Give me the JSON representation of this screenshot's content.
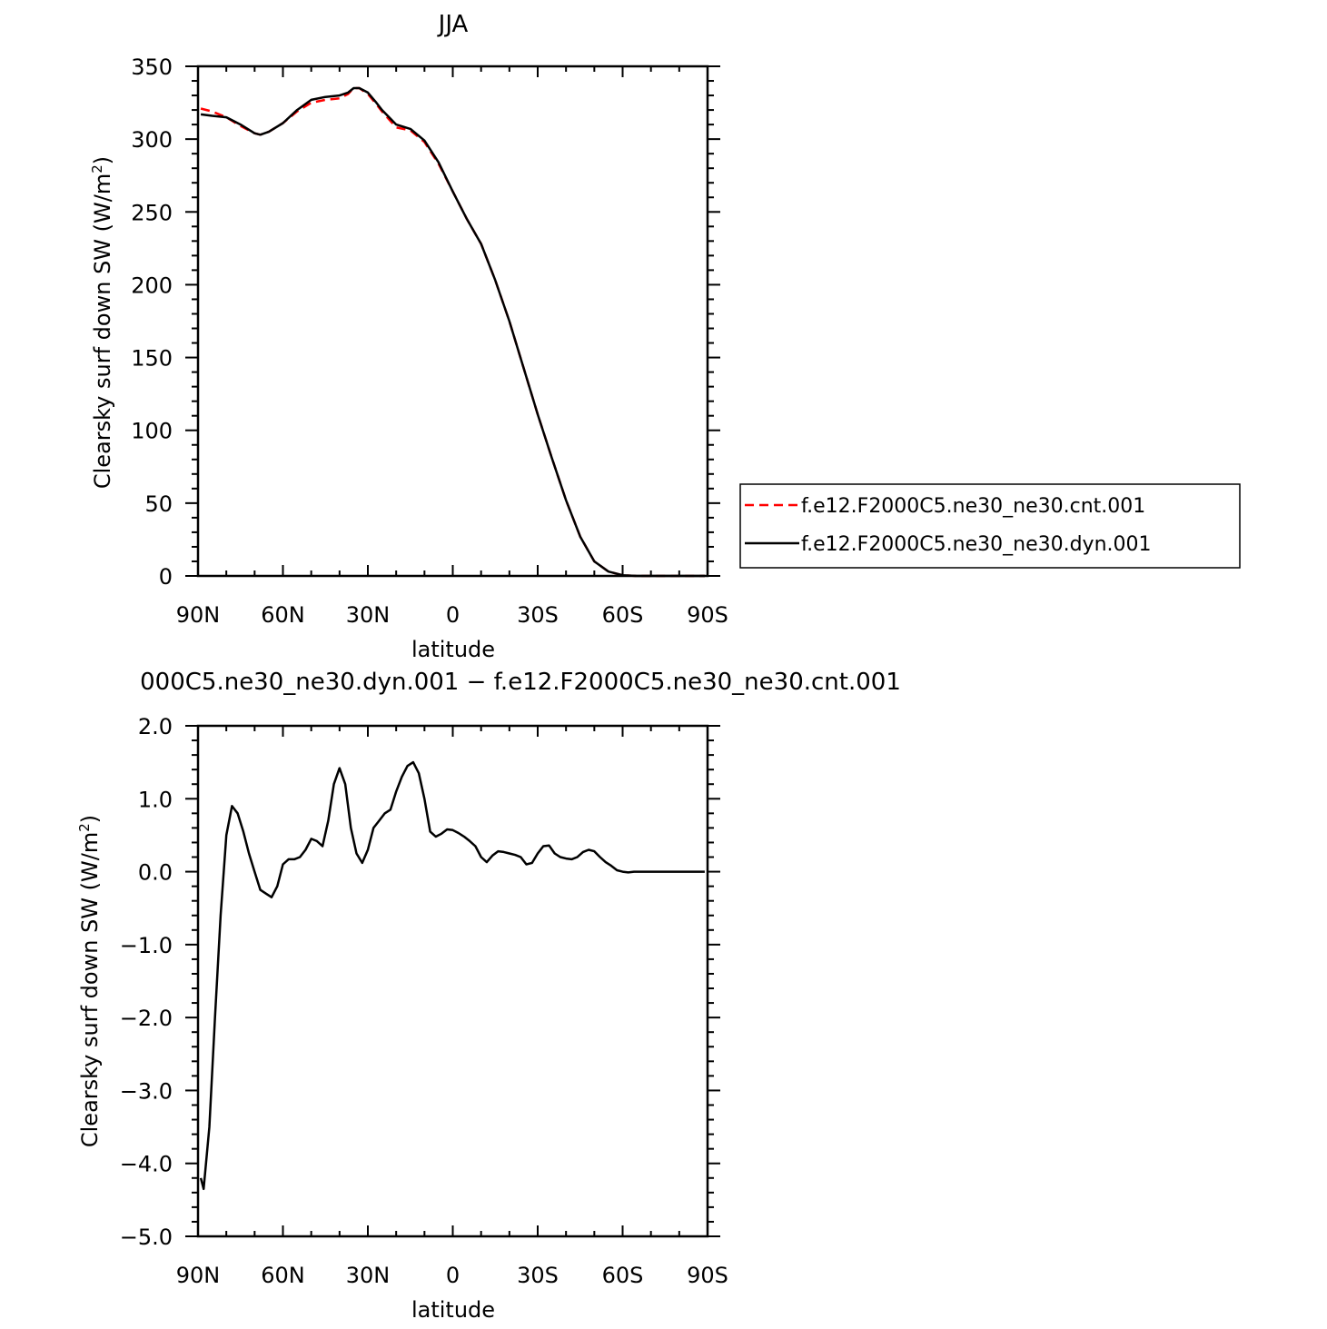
{
  "chart_data": [
    {
      "type": "line",
      "title": "JJA",
      "xlabel": "latitude",
      "ylabel": "Clearsky surf down SW (W/m",
      "ylabel_sup": "2",
      "ylabel_end": ")",
      "xlim": [
        90,
        -90
      ],
      "ylim": [
        0,
        350
      ],
      "x_ticks": [
        90,
        60,
        30,
        0,
        -30,
        -60,
        -90
      ],
      "x_tick_labels": [
        "90N",
        "60N",
        "30N",
        "0",
        "30S",
        "60S",
        "90S"
      ],
      "y_ticks": [
        0,
        50,
        100,
        150,
        200,
        250,
        300,
        350
      ],
      "y_tick_labels": [
        "0",
        "50",
        "100",
        "150",
        "200",
        "250",
        "300",
        "350"
      ],
      "legend": "right",
      "series": [
        {
          "name": "f.e12.F2000C5.ne30_ne30.cnt.001",
          "color": "#ff0000",
          "dash": "dashed",
          "x": [
            89,
            85,
            80,
            75,
            70,
            68,
            65,
            60,
            55,
            50,
            45,
            40,
            37,
            35,
            33,
            30,
            27,
            25,
            20,
            15,
            10,
            5,
            0,
            -5,
            -10,
            -15,
            -20,
            -25,
            -30,
            -35,
            -40,
            -45,
            -50,
            -55,
            -60,
            -65,
            -70,
            -75,
            -80,
            -85,
            -89
          ],
          "y": [
            321,
            319,
            315,
            309,
            304,
            303,
            305,
            311,
            319,
            325,
            327,
            328,
            331,
            335,
            335,
            331,
            324,
            319,
            308,
            306,
            298,
            283,
            264,
            245,
            228,
            203,
            175,
            143,
            111,
            81,
            52,
            27,
            10,
            3,
            0.5,
            0,
            0,
            0,
            0,
            0,
            0
          ]
        },
        {
          "name": "f.e12.F2000C5.ne30_ne30.dyn.001",
          "color": "#000000",
          "dash": "solid",
          "x": [
            89,
            85,
            80,
            75,
            70,
            68,
            65,
            60,
            55,
            50,
            45,
            40,
            37,
            35,
            33,
            30,
            27,
            25,
            20,
            15,
            10,
            5,
            0,
            -5,
            -10,
            -15,
            -20,
            -25,
            -30,
            -35,
            -40,
            -45,
            -50,
            -55,
            -60,
            -65,
            -70,
            -75,
            -80,
            -85,
            -89
          ],
          "y": [
            317,
            316,
            315,
            310,
            304,
            303,
            305,
            311,
            320,
            327,
            329,
            330,
            332,
            335,
            335,
            332,
            325,
            320,
            310,
            307,
            299,
            284,
            264,
            245,
            228,
            203,
            175,
            143,
            111,
            81,
            52,
            27,
            10,
            3,
            0.5,
            0,
            0,
            0,
            0,
            0,
            0
          ]
        }
      ]
    },
    {
      "type": "line",
      "title": "000C5.ne30_ne30.dyn.001 − f.e12.F2000C5.ne30_ne30.cnt.001",
      "xlabel": "latitude",
      "ylabel": "Clearsky surf down SW (W/m",
      "ylabel_sup": "2",
      "ylabel_end": ")",
      "xlim": [
        90,
        -90
      ],
      "ylim": [
        -5,
        2
      ],
      "x_ticks": [
        90,
        60,
        30,
        0,
        -30,
        -60,
        -90
      ],
      "x_tick_labels": [
        "90N",
        "60N",
        "30N",
        "0",
        "30S",
        "60S",
        "90S"
      ],
      "y_ticks": [
        2,
        1,
        0,
        -1,
        -2,
        -3,
        -4,
        -5
      ],
      "y_tick_labels": [
        "2.0",
        "1.0",
        "0.0",
        "−1.0",
        "−2.0",
        "−3.0",
        "−4.0",
        "−5.0"
      ],
      "series": [
        {
          "color": "#000000",
          "dash": "solid",
          "x": [
            89,
            88,
            86,
            84,
            82,
            80,
            78,
            76,
            74,
            72,
            70,
            68,
            66,
            64,
            62,
            60,
            58,
            56,
            54,
            52,
            50,
            48,
            46,
            44,
            42,
            40,
            38,
            36,
            34,
            32,
            30,
            28,
            26,
            24,
            22,
            20,
            18,
            16,
            14,
            12,
            10,
            8,
            6,
            4,
            2,
            0,
            -2,
            -4,
            -6,
            -8,
            -10,
            -12,
            -14,
            -16,
            -18,
            -20,
            -22,
            -24,
            -26,
            -28,
            -30,
            -32,
            -34,
            -36,
            -38,
            -40,
            -42,
            -44,
            -46,
            -48,
            -50,
            -52,
            -54,
            -56,
            -58,
            -60,
            -62,
            -64,
            -66,
            -68,
            -70,
            -75,
            -80,
            -85,
            -89
          ],
          "y": [
            -4.2,
            -4.35,
            -3.5,
            -2.0,
            -0.6,
            0.5,
            0.9,
            0.8,
            0.55,
            0.25,
            0.0,
            -0.25,
            -0.3,
            -0.35,
            -0.2,
            0.1,
            0.17,
            0.17,
            0.2,
            0.3,
            0.45,
            0.42,
            0.35,
            0.7,
            1.2,
            1.42,
            1.2,
            0.6,
            0.25,
            0.12,
            0.3,
            0.6,
            0.7,
            0.8,
            0.85,
            1.1,
            1.3,
            1.45,
            1.5,
            1.35,
            1.0,
            0.55,
            0.48,
            0.52,
            0.58,
            0.57,
            0.53,
            0.48,
            0.42,
            0.35,
            0.2,
            0.13,
            0.22,
            0.28,
            0.27,
            0.25,
            0.23,
            0.2,
            0.1,
            0.12,
            0.25,
            0.35,
            0.36,
            0.25,
            0.2,
            0.18,
            0.17,
            0.2,
            0.27,
            0.3,
            0.28,
            0.2,
            0.13,
            0.08,
            0.02,
            0.0,
            -0.01,
            0.0,
            0.0,
            0.0,
            0.0,
            0.0,
            0.0,
            0.0,
            0.0
          ]
        }
      ]
    }
  ]
}
